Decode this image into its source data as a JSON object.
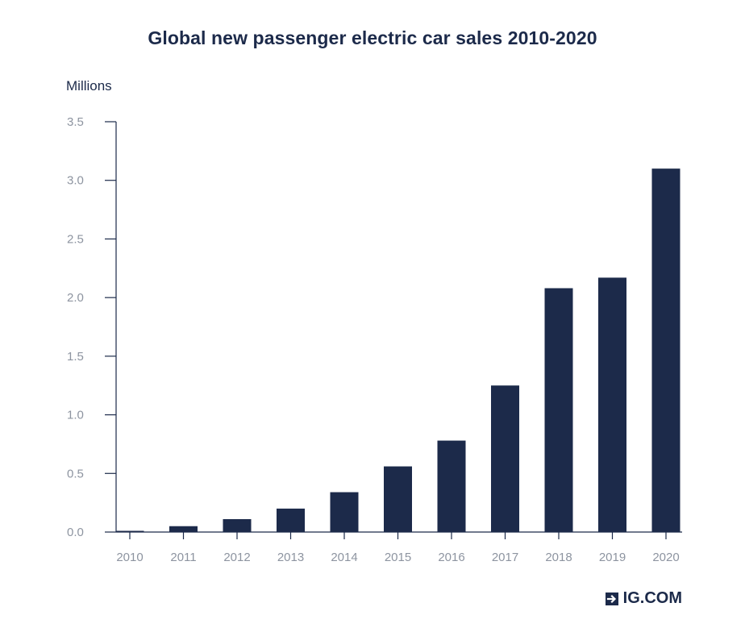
{
  "chart_data": {
    "type": "bar",
    "title": "Global new passenger electric car sales 2010-2020",
    "ylabel": "Millions",
    "xlabel": "",
    "categories": [
      "2010",
      "2011",
      "2012",
      "2013",
      "2014",
      "2015",
      "2016",
      "2017",
      "2018",
      "2019",
      "2020"
    ],
    "values": [
      0.01,
      0.05,
      0.11,
      0.2,
      0.34,
      0.56,
      0.78,
      1.25,
      2.08,
      2.17,
      3.1
    ],
    "ylim": [
      0,
      3.5
    ],
    "yticks": [
      "0.0",
      "0.5",
      "1.0",
      "1.5",
      "2.0",
      "2.5",
      "3.0",
      "3.5"
    ],
    "grid": false,
    "bar_color": "#1c2a4a"
  },
  "brand": {
    "label": "IG.COM",
    "icon": "arrow-right-box-icon"
  }
}
